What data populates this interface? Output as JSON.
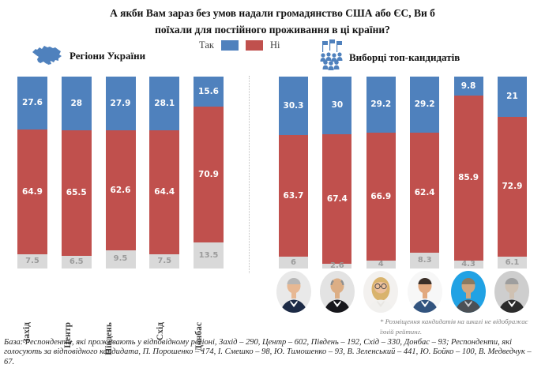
{
  "title": {
    "line1": "А якби Вам зараз без умов надали громадянство США або ЄС, Ви б",
    "line2": "поїхали для постійного проживання в ці країни?"
  },
  "legend": {
    "yes_label": "Так",
    "no_label": "Ні",
    "yes_color": "#4f81bd",
    "no_color": "#c0504d",
    "gray_color": "#d9d9d9"
  },
  "sections": {
    "left": {
      "label": "Регіони України",
      "icon": "ukraine-map-icon"
    },
    "right": {
      "label": "Виборці топ-кандидатів",
      "icon": "voters-crowd-icon"
    }
  },
  "chart_data": {
    "type": "bar",
    "stacked": true,
    "unit": "percent",
    "ylim": [
      0,
      100
    ],
    "legend_position": "top-center",
    "grid": false,
    "groups": [
      {
        "name": "Регіони України",
        "categories": [
          "Захід",
          "Центр",
          "Південь",
          "Схід",
          "Донбас"
        ],
        "series": [
          {
            "name": "Так",
            "values": [
              27.6,
              28,
              27.9,
              28.1,
              15.6
            ]
          },
          {
            "name": "Ні",
            "values": [
              64.9,
              65.5,
              62.6,
              64.4,
              70.9
            ]
          },
          {
            "name": "",
            "values": [
              7.5,
              6.5,
              9.5,
              7.5,
              13.5
            ]
          }
        ]
      },
      {
        "name": "Виборці топ-кандидатів",
        "categories": [
          "П. Порошенко",
          "І. Смешко",
          "Ю. Тимошенко",
          "В. Зеленський",
          "Ю. Бойко",
          "В. Медведчук"
        ],
        "series": [
          {
            "name": "Так",
            "values": [
              30.3,
              30,
              29.2,
              29.2,
              9.8,
              21
            ]
          },
          {
            "name": "Ні",
            "values": [
              63.7,
              67.4,
              66.9,
              62.4,
              85.9,
              72.9
            ]
          },
          {
            "name": "",
            "values": [
              6,
              2.6,
              4,
              8.3,
              4.3,
              6.1
            ]
          }
        ]
      }
    ]
  },
  "candidates": [
    {
      "name": "П. Порошенко",
      "bg": "#e9e9e9",
      "hair": "#b6b6b6",
      "skin": "#e7b893",
      "suit": "#1d2b46",
      "shirt": "#ffffff",
      "hair_style": "full",
      "glasses": false
    },
    {
      "name": "І. Смешко",
      "bg": "#e3e3e3",
      "hair": "#8f8f8f",
      "skin": "#dcae85",
      "suit": "#17171c",
      "shirt": "#ffffff",
      "hair_style": "bald",
      "glasses": false
    },
    {
      "name": "Ю. Тимошенко",
      "bg": "#f3f1ef",
      "hair": "#d9b36c",
      "skin": "#ecc09b",
      "suit": "#f1f0ee",
      "shirt": "#e8e6e2",
      "hair_style": "long",
      "glasses": true
    },
    {
      "name": "В. Зеленський",
      "bg": "#f7f7f7",
      "hair": "#3b2f28",
      "skin": "#e2a97f",
      "suit": "#32547f",
      "shirt": "#ffffff",
      "hair_style": "full",
      "glasses": false
    },
    {
      "name": "Ю. Бойко",
      "bg": "#21a2e4",
      "hair": "#8a7a62",
      "skin": "#cfa680",
      "suit": "#4b5055",
      "shirt": "#c9ccd0",
      "hair_style": "full",
      "glasses": false
    },
    {
      "name": "В. Медведчук",
      "bg": "#cecece",
      "hair": "#9e9e9e",
      "skin": "#cfc1b2",
      "suit": "#2c2c2c",
      "shirt": "#ffffff",
      "hair_style": "full",
      "glasses": false
    }
  ],
  "footnote": {
    "text": "* Розміщення кандидатів на шкалі не відображає їхній рейтинг."
  },
  "footer": {
    "text": "База: Респонденти, які проживають у відповідному регіоні, Захід – 290, Центр – 602, Південь – 192, Схід – 330, Донбас – 93; Респонденти, які голосують за відповідного кандидата, П. Порошенко – 174, І. Смешко – 98, Ю. Тимошенко – 93, В. Зеленський – 441, Ю. Бойко – 100, В. Медведчук – 67."
  }
}
